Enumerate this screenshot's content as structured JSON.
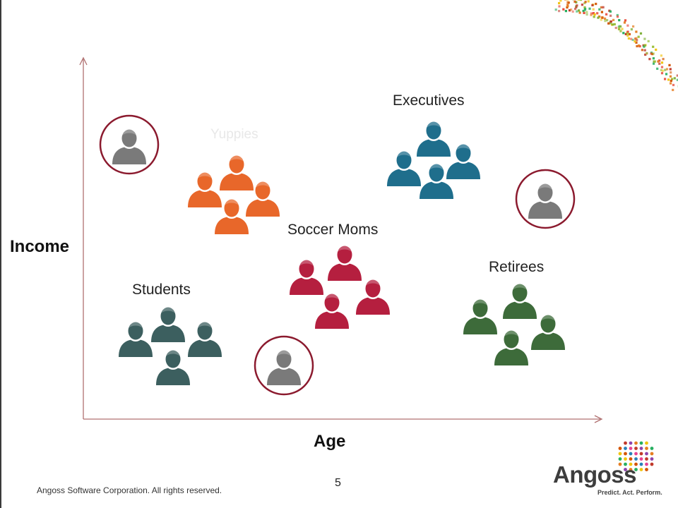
{
  "axes": {
    "y_label": "Income",
    "x_label": "Age"
  },
  "segments": [
    {
      "name": "Executives",
      "color": "#1f6e8c"
    },
    {
      "name": "Soccer Moms",
      "color": "#b51f3f"
    },
    {
      "name": "Retirees",
      "color": "#3d6b3a"
    },
    {
      "name": "Students",
      "color": "#3c5f5f"
    },
    {
      "name": "Yuppies",
      "color": "#e8672a"
    }
  ],
  "outlier_color": "#7a7a7a",
  "outlier_ring_color": "#8b1a2e",
  "footer": {
    "copyright": "Angoss Software Corporation. All rights reserved.",
    "page_number": "5"
  },
  "logo": {
    "name": "Angoss",
    "tagline": "Predict. Act. Perform."
  }
}
